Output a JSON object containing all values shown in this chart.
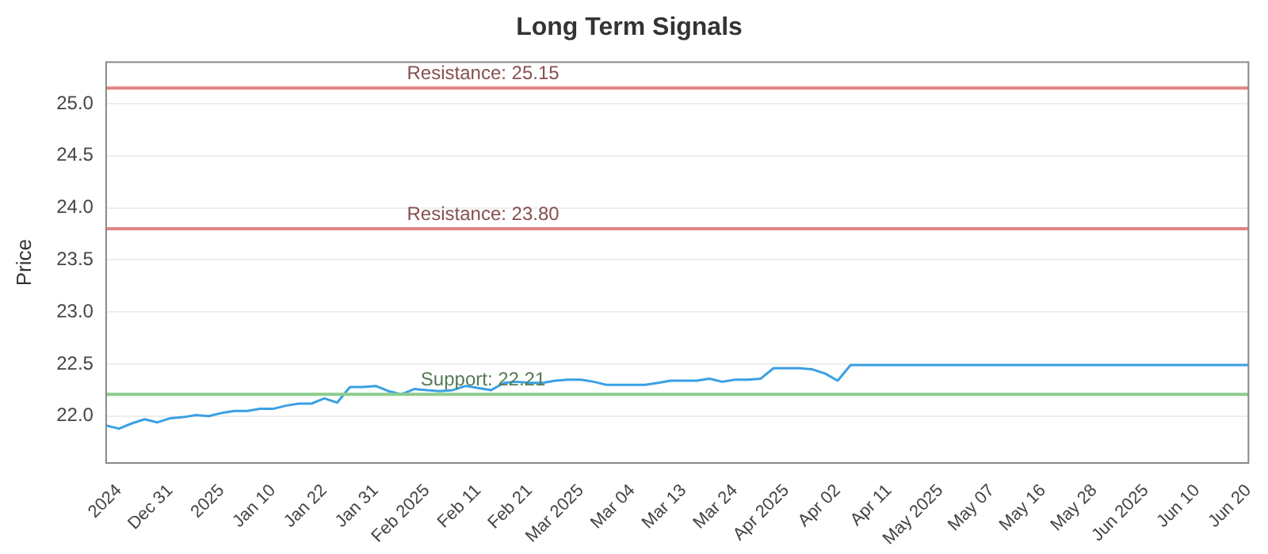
{
  "chart_data": {
    "type": "line",
    "title": "Long Term Signals",
    "ylabel": "Price",
    "categories": [
      null,
      "2024",
      null,
      null,
      null,
      "Dec 31",
      null,
      null,
      null,
      "2025",
      null,
      null,
      null,
      "Jan 10",
      null,
      null,
      null,
      "Jan 22",
      null,
      null,
      null,
      "Jan 31",
      null,
      null,
      null,
      "Feb 2025",
      null,
      null,
      null,
      "Feb 11",
      null,
      null,
      null,
      "Feb 21",
      null,
      null,
      null,
      "Mar 2025",
      null,
      null,
      null,
      "Mar 04",
      null,
      null,
      null,
      "Mar 13",
      null,
      null,
      null,
      "Mar 24",
      null,
      null,
      null,
      "Apr 2025",
      null,
      null,
      null,
      "Apr 02",
      null,
      null,
      null,
      "Apr 11",
      null,
      null,
      null,
      "May 2025",
      null,
      null,
      null,
      "May 07",
      null,
      null,
      null,
      "May 16",
      null,
      null,
      null,
      "May 28",
      null,
      null,
      null,
      "Jun 2025",
      null,
      null,
      null,
      "Jun 10",
      null,
      null,
      null,
      "Jun 20"
    ],
    "series": [
      {
        "color": "#3aa0e4",
        "values": [
          21.91,
          21.88,
          21.93,
          21.97,
          21.94,
          21.98,
          21.99,
          22.01,
          22.0,
          22.03,
          22.05,
          22.05,
          22.07,
          22.07,
          22.1,
          22.12,
          22.12,
          22.17,
          22.13,
          22.28,
          22.28,
          22.29,
          22.24,
          22.21,
          22.26,
          22.25,
          22.24,
          22.25,
          22.29,
          22.27,
          22.25,
          22.32,
          22.33,
          22.32,
          22.32,
          22.34,
          22.35,
          22.35,
          22.33,
          22.3,
          22.3,
          22.3,
          22.3,
          22.32,
          22.34,
          22.34,
          22.34,
          22.36,
          22.33,
          22.35,
          22.35,
          22.36,
          22.46,
          22.46,
          22.46,
          22.45,
          22.41,
          22.34,
          22.49,
          22.49,
          22.49,
          22.49,
          22.49,
          22.49,
          22.49,
          22.49,
          22.49,
          22.49,
          22.49,
          22.49,
          22.49,
          22.49,
          22.49,
          22.49,
          22.49,
          22.49,
          22.49,
          22.49,
          22.49,
          22.49,
          22.49,
          22.49,
          22.49,
          22.49,
          22.49,
          22.49,
          22.49,
          22.49,
          22.49,
          22.49
        ]
      }
    ],
    "ylim": [
      21.55,
      25.4
    ],
    "yticks": [
      {
        "value": 22,
        "label": "22.0"
      },
      {
        "value": 22.5,
        "label": "22.5"
      },
      {
        "value": 23,
        "label": "23.0"
      },
      {
        "value": 23.5,
        "label": "23.5"
      },
      {
        "value": 24,
        "label": "24.0"
      },
      {
        "value": 24.5,
        "label": "24.5"
      },
      {
        "value": 25,
        "label": "25.0"
      }
    ],
    "ref_lines": [
      {
        "axis": "y",
        "value": 25.15,
        "label": "Resistance: 25.15",
        "color": "#e08585"
      },
      {
        "axis": "y",
        "value": 23.8,
        "label": "Resistance: 23.80",
        "color": "#e08585"
      },
      {
        "axis": "y",
        "value": 22.21,
        "label": "Support: 22.21",
        "color": "#8ccc8c"
      }
    ],
    "grid": "y",
    "legend": false,
    "marker": "none",
    "line_style": "solid"
  }
}
